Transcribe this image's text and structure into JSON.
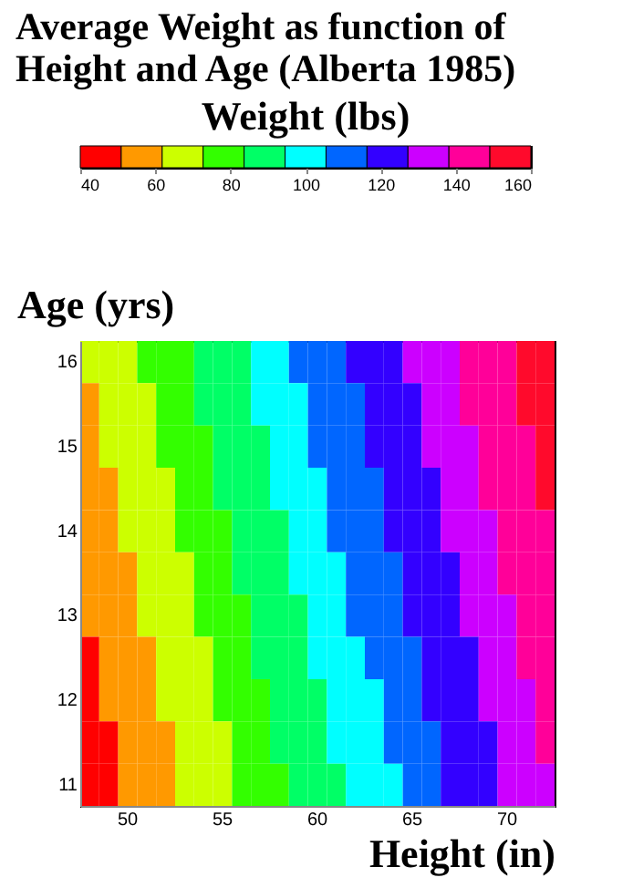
{
  "chart_data": {
    "type": "heatmap",
    "title": "Average Weight as function of\nHeight and Age (Alberta 1985)",
    "clabel": "Weight (lbs)",
    "xlabel": "Height (in)",
    "ylabel": "Age (yrs)",
    "categories": [
      null,
      null,
      "50",
      null,
      null,
      null,
      null,
      "55",
      null,
      null,
      null,
      null,
      "60",
      null,
      null,
      null,
      null,
      "65",
      null,
      null,
      null,
      null,
      "70",
      null,
      null
    ],
    "y_categories": [
      "16",
      null,
      "15",
      null,
      "14",
      null,
      "13",
      null,
      "12",
      null,
      "11"
    ],
    "cells": [
      [
        63,
        67,
        70,
        74,
        78,
        82,
        86,
        90,
        94,
        98,
        102,
        106,
        110,
        113,
        117,
        121,
        125,
        129,
        133,
        137,
        141,
        145,
        149,
        153,
        156
      ],
      [
        61,
        65,
        68,
        72,
        76,
        80,
        84,
        88,
        92,
        96,
        100,
        104,
        108,
        112,
        115,
        119,
        123,
        127,
        131,
        135,
        139,
        143,
        147,
        151,
        155
      ],
      [
        59,
        63,
        67,
        70,
        74,
        78,
        82,
        86,
        90,
        94,
        98,
        102,
        106,
        110,
        113,
        117,
        121,
        125,
        129,
        133,
        137,
        141,
        145,
        149,
        153
      ],
      [
        57,
        61,
        65,
        68,
        72,
        76,
        80,
        84,
        88,
        92,
        96,
        100,
        104,
        108,
        111,
        115,
        119,
        123,
        127,
        131,
        135,
        139,
        143,
        147,
        151
      ],
      [
        55,
        59,
        63,
        66,
        70,
        74,
        78,
        82,
        86,
        90,
        94,
        98,
        102,
        106,
        109,
        113,
        117,
        121,
        125,
        129,
        133,
        137,
        141,
        145,
        149
      ],
      [
        53,
        57,
        61,
        65,
        68,
        72,
        76,
        80,
        84,
        88,
        92,
        96,
        100,
        104,
        108,
        111,
        115,
        119,
        123,
        127,
        131,
        135,
        139,
        143,
        147
      ],
      [
        51,
        55,
        59,
        63,
        66,
        70,
        74,
        78,
        82,
        86,
        90,
        94,
        98,
        102,
        106,
        109,
        113,
        117,
        121,
        125,
        129,
        133,
        137,
        141,
        145
      ],
      [
        49,
        53,
        57,
        61,
        64,
        68,
        72,
        76,
        80,
        84,
        88,
        92,
        96,
        100,
        104,
        107,
        111,
        115,
        119,
        123,
        127,
        131,
        135,
        139,
        143
      ],
      [
        47,
        51,
        55,
        59,
        62,
        66,
        70,
        74,
        78,
        82,
        86,
        90,
        94,
        98,
        102,
        105,
        109,
        113,
        117,
        121,
        125,
        129,
        133,
        137,
        141
      ],
      [
        45,
        49,
        53,
        57,
        61,
        64,
        68,
        72,
        76,
        80,
        84,
        88,
        92,
        96,
        100,
        104,
        107,
        111,
        115,
        119,
        123,
        127,
        131,
        135,
        139
      ],
      [
        43,
        47,
        51,
        55,
        59,
        62,
        66,
        70,
        74,
        78,
        82,
        86,
        90,
        94,
        98,
        102,
        105,
        109,
        113,
        117,
        121,
        125,
        129,
        133,
        137
      ]
    ],
    "clim": [
      40,
      160
    ],
    "cticks": [
      40,
      60,
      80,
      100,
      120,
      140,
      160
    ],
    "colors": [
      "#ff0000",
      "#ff9900",
      "#ccff00",
      "#33ff00",
      "#00ff66",
      "#00ffff",
      "#0066ff",
      "#3300ff",
      "#cc00ff",
      "#ff0099",
      "#ff0a2c"
    ]
  }
}
